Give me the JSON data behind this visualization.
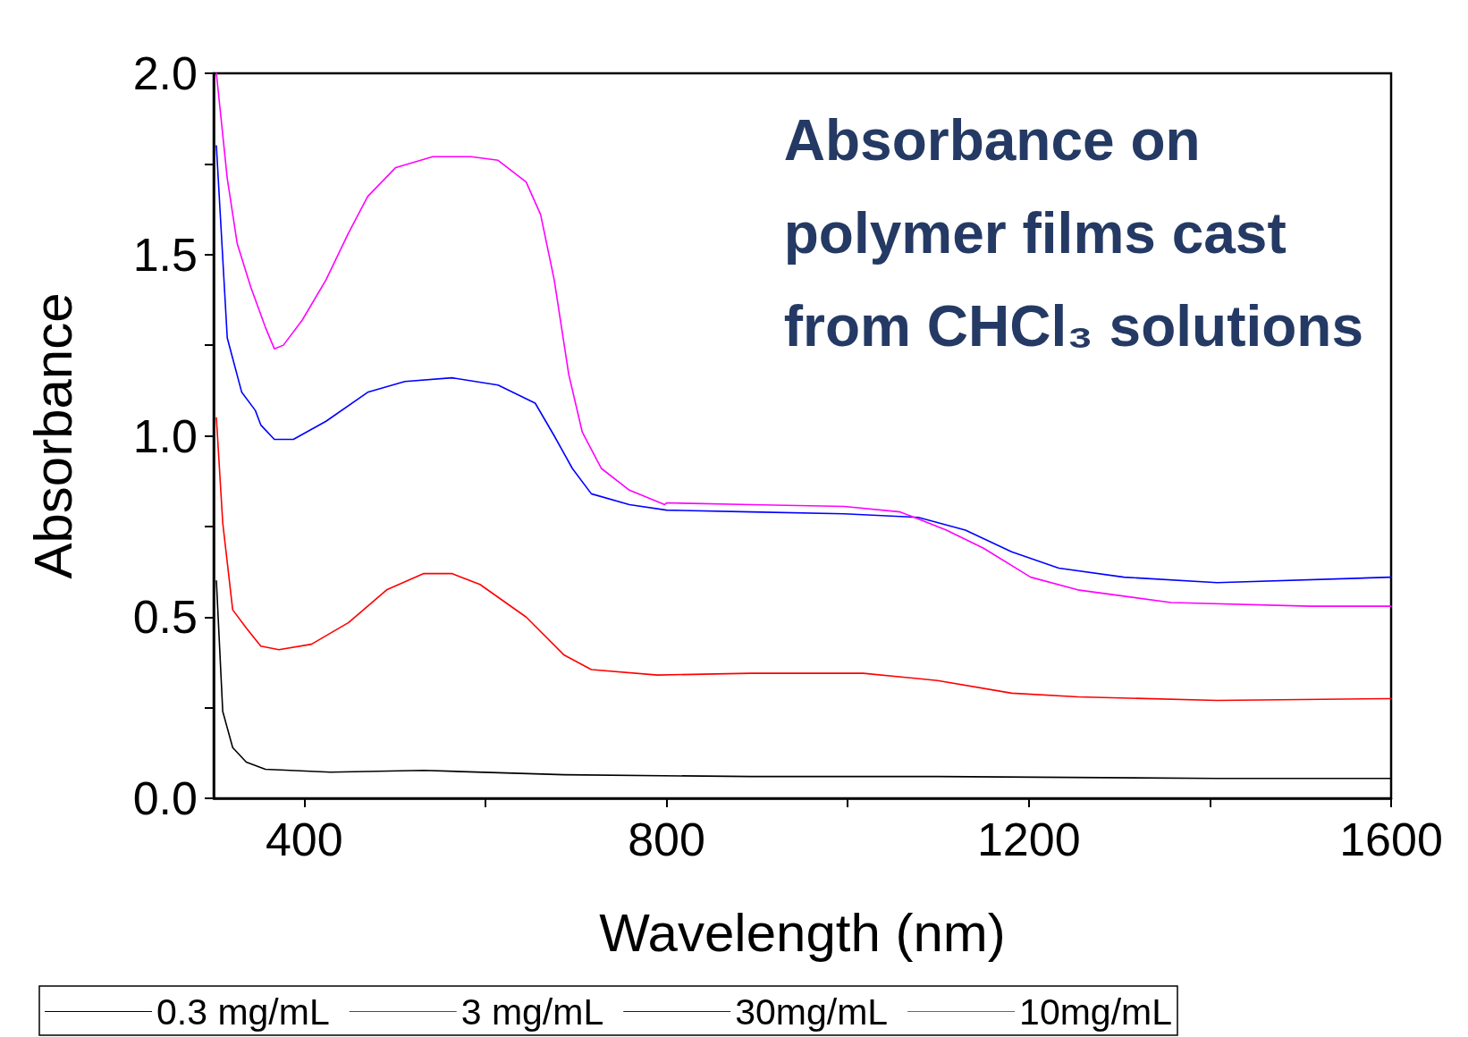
{
  "chart_data": {
    "type": "line",
    "title": "Absorbance on\npolymer films cast\nfrom CHCl₃ solutions",
    "xlabel": "Wavelength (nm)",
    "ylabel": "Absorbance",
    "xlim": [
      300,
      1600
    ],
    "xticks": [
      400,
      {
        "value": 600,
        "label": null
      },
      800,
      {
        "value": 1000,
        "label": null
      },
      1200,
      {
        "value": 1400,
        "label": null
      },
      1600
    ],
    "ylim": [
      0,
      2
    ],
    "yticks": [
      {
        "value": 0,
        "label": "0.0"
      },
      {
        "value": 0.25,
        "label": null
      },
      {
        "value": 0.5,
        "label": "0.5"
      },
      {
        "value": 0.75,
        "label": null
      },
      {
        "value": 1,
        "label": "1.0"
      },
      {
        "value": 1.25,
        "label": null
      },
      {
        "value": 1.5,
        "label": "1.5"
      },
      {
        "value": 1.75,
        "label": null
      },
      {
        "value": 2,
        "label": "2.0"
      }
    ],
    "grid": false,
    "legend": "bottom",
    "marker": "none",
    "line_style": "solid",
    "series": [
      {
        "name": "0.3 mg/mL",
        "color": "#000000",
        "x": [
          303,
          310,
          321,
          336,
          357,
          429,
          532,
          687,
          893,
          1099,
          1408,
          1600
        ],
        "values": [
          0.6,
          0.24,
          0.14,
          0.1,
          0.08,
          0.072,
          0.077,
          0.065,
          0.06,
          0.06,
          0.055,
          0.055
        ]
      },
      {
        "name": "3 mg/mL",
        "color": "#ff0000",
        "x": [
          303,
          310,
          321,
          336,
          352,
          372,
          408,
          449,
          491,
          532,
          563,
          594,
          645,
          687,
          717,
          790,
          893,
          1017,
          1099,
          1181,
          1254,
          1408,
          1600
        ],
        "values": [
          1.05,
          0.76,
          0.52,
          0.47,
          0.42,
          0.41,
          0.425,
          0.485,
          0.575,
          0.62,
          0.62,
          0.59,
          0.5,
          0.395,
          0.355,
          0.34,
          0.345,
          0.345,
          0.325,
          0.29,
          0.28,
          0.27,
          0.275
        ]
      },
      {
        "name": "30mg/mL",
        "color": "#0000ff",
        "x": [
          303,
          315,
          331,
          346,
          352,
          367,
          388,
          424,
          470,
          511,
          563,
          614,
          655,
          676,
          696,
          717,
          759,
          800,
          893,
          996,
          1078,
          1130,
          1181,
          1233,
          1305,
          1408,
          1600
        ],
        "values": [
          1.8,
          1.27,
          1.12,
          1.07,
          1.03,
          0.99,
          0.99,
          1.04,
          1.12,
          1.15,
          1.16,
          1.14,
          1.09,
          1.0,
          0.91,
          0.84,
          0.81,
          0.795,
          0.79,
          0.785,
          0.775,
          0.74,
          0.68,
          0.635,
          0.61,
          0.595,
          0.61
        ]
      },
      {
        "name": "10mg/mL",
        "color": "#ff00ff",
        "x": [
          303,
          315,
          326,
          341,
          357,
          367,
          377,
          398,
          424,
          449,
          470,
          501,
          542,
          584,
          614,
          645,
          661,
          676,
          692,
          707,
          728,
          759,
          798,
          800,
          893,
          996,
          1058,
          1109,
          1150,
          1202,
          1254,
          1357,
          1511,
          1600
        ],
        "values": [
          2.0,
          1.71,
          1.53,
          1.41,
          1.3,
          1.24,
          1.25,
          1.32,
          1.43,
          1.56,
          1.66,
          1.74,
          1.77,
          1.77,
          1.76,
          1.7,
          1.61,
          1.43,
          1.17,
          1.01,
          0.91,
          0.85,
          0.81,
          0.815,
          0.81,
          0.805,
          0.79,
          0.74,
          0.69,
          0.61,
          0.575,
          0.54,
          0.53,
          0.53
        ]
      }
    ]
  }
}
